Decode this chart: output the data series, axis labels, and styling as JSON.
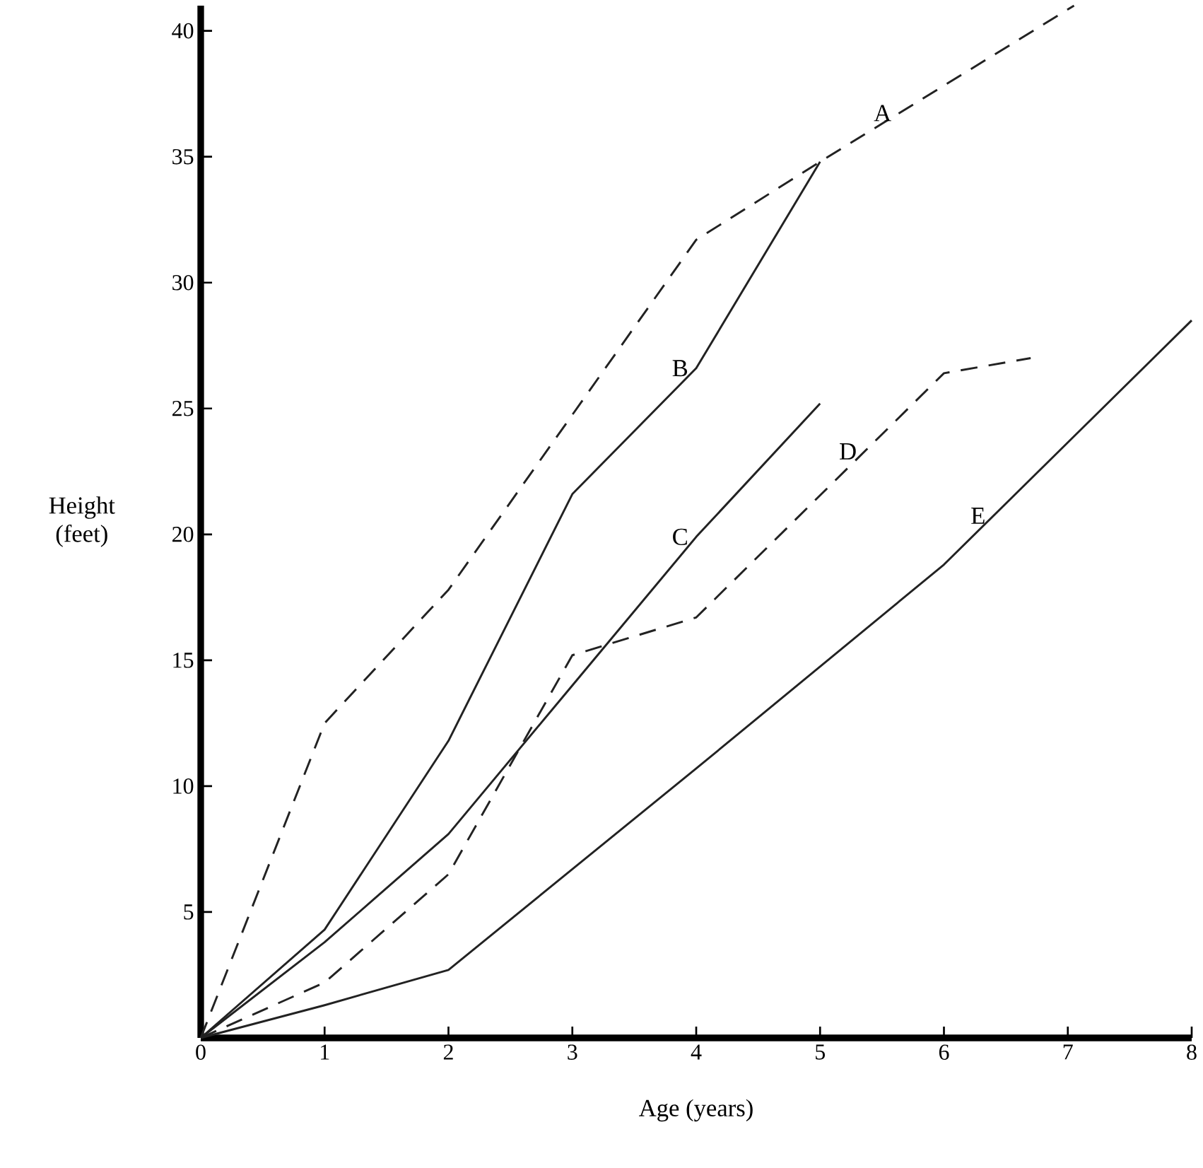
{
  "chart_data": {
    "type": "line",
    "xlabel": "Age (years)",
    "ylabel": "Height (feet)",
    "xlim": [
      0,
      8
    ],
    "ylim": [
      0,
      41
    ],
    "xticks": [
      0,
      1,
      2,
      3,
      4,
      5,
      6,
      7,
      8
    ],
    "yticks": [
      5,
      10,
      15,
      20,
      25,
      30,
      35,
      40
    ],
    "grid": false,
    "marker": "none",
    "series": [
      {
        "name": "A",
        "color": "#222222",
        "line_style": "dashed",
        "x": [
          0,
          1,
          2,
          4,
          5,
          7.05
        ],
        "values": [
          0,
          12.5,
          17.8,
          31.7,
          34.8,
          41
        ]
      },
      {
        "name": "B",
        "color": "#222222",
        "line_style": "solid",
        "x": [
          0,
          1,
          2,
          3,
          4,
          5
        ],
        "values": [
          0,
          4.3,
          11.8,
          21.6,
          26.6,
          34.8
        ]
      },
      {
        "name": "C",
        "color": "#222222",
        "line_style": "solid",
        "x": [
          0,
          1,
          2,
          3,
          4,
          5
        ],
        "values": [
          0,
          3.8,
          8.1,
          14,
          19.9,
          25.2
        ]
      },
      {
        "name": "D",
        "color": "#222222",
        "line_style": "dashed",
        "x": [
          0,
          1,
          2,
          3,
          4,
          6,
          6.7
        ],
        "values": [
          0,
          2.2,
          6.5,
          15.2,
          16.7,
          26.4,
          27
        ]
      },
      {
        "name": "E",
        "color": "#222222",
        "line_style": "solid",
        "x": [
          0,
          1,
          2,
          4,
          6,
          8
        ],
        "values": [
          0,
          1.3,
          2.7,
          10.7,
          18.8,
          28.5
        ]
      }
    ]
  }
}
